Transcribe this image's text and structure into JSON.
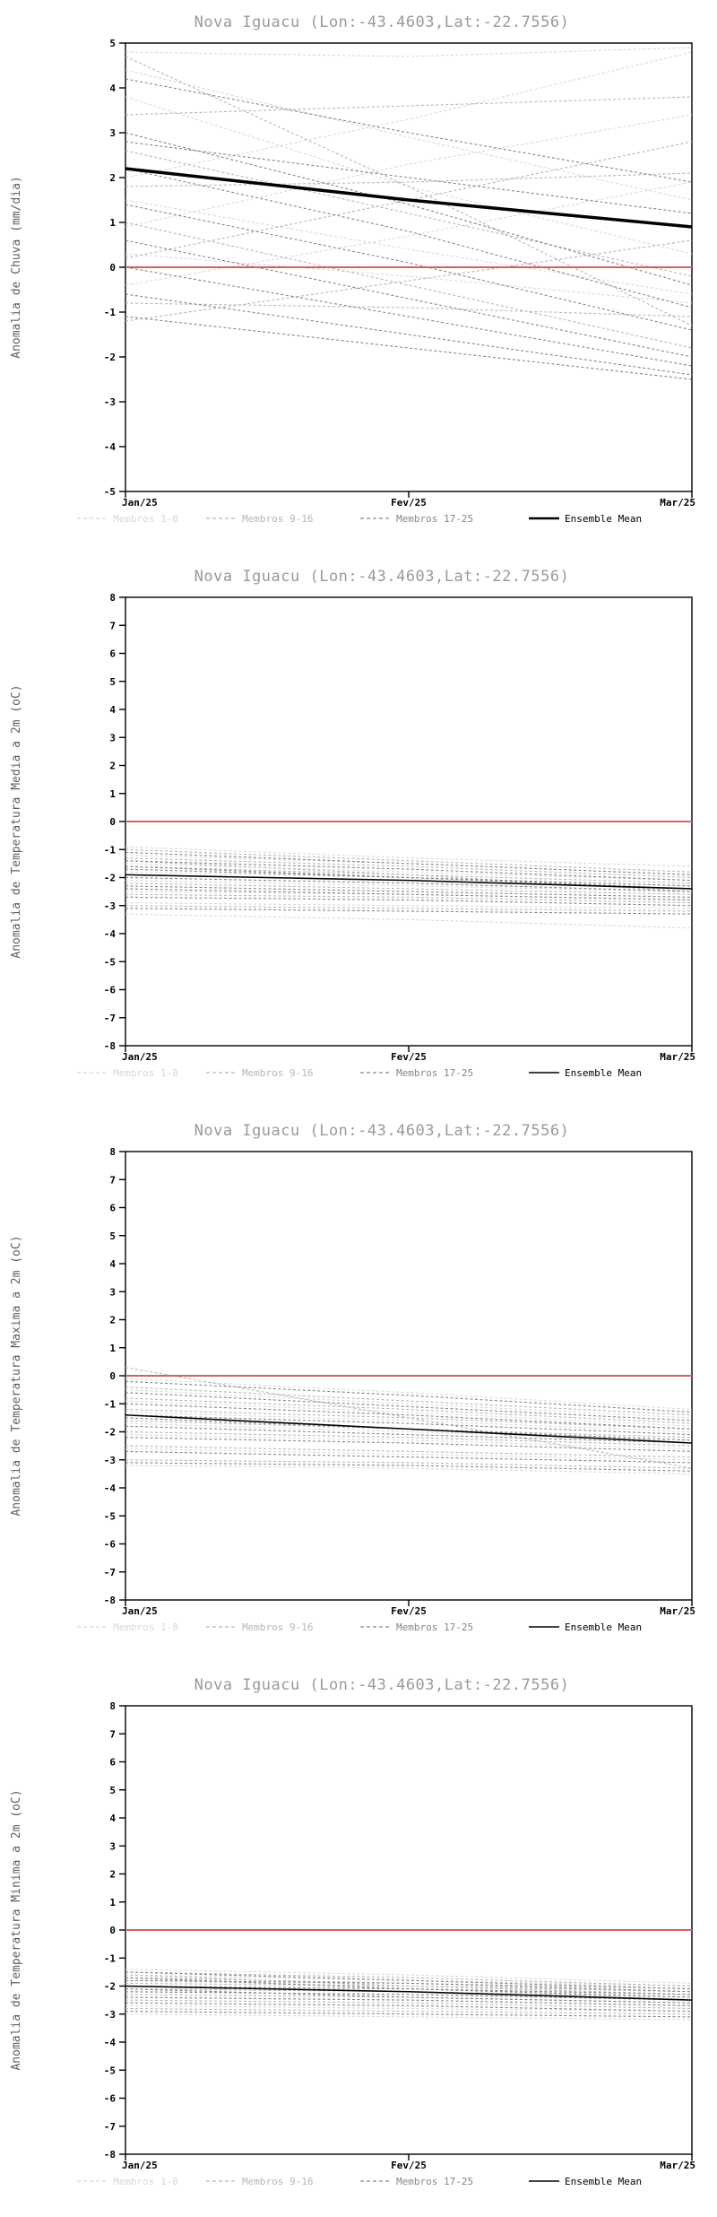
{
  "page": {
    "background": "#ffffff"
  },
  "chart_data": [
    {
      "type": "line",
      "title": "Nova Iguacu (Lon:-43.4603,Lat:-22.7556)",
      "ylabel": "Anomalia de Chuva (mm/dia)",
      "xlabel": "",
      "ylim": [
        -5,
        5
      ],
      "ytick_step": 1,
      "x": [
        "Jan/25",
        "Fev/25",
        "Mar/25"
      ],
      "zero_line": {
        "value": 0,
        "color": "#d95f5f"
      },
      "groups": [
        {
          "name": "Membros 1-8",
          "color": "#d8d8d8",
          "members": [
            [
              4.8,
              4.7,
              4.9
            ],
            [
              4.4,
              2.9,
              1.5
            ],
            [
              3.8,
              1.8,
              0.3
            ],
            [
              2.0,
              3.3,
              4.8
            ],
            [
              1.5,
              0.4,
              -0.6
            ],
            [
              0.9,
              2.3,
              3.4
            ],
            [
              0.3,
              -0.2,
              -0.8
            ],
            [
              -0.4,
              0.7,
              1.9
            ]
          ]
        },
        {
          "name": "Membros 9-16",
          "color": "#b6b6b6",
          "members": [
            [
              4.7,
              1.8,
              -1.3
            ],
            [
              3.4,
              3.6,
              3.8
            ],
            [
              2.6,
              1.2,
              -0.2
            ],
            [
              1.8,
              1.9,
              2.1
            ],
            [
              1.0,
              -0.4,
              -1.8
            ],
            [
              0.2,
              1.5,
              2.8
            ],
            [
              -0.8,
              -0.9,
              -1.1
            ],
            [
              -1.2,
              -0.3,
              0.6
            ]
          ]
        },
        {
          "name": "Membros 17-25",
          "color": "#868686",
          "members": [
            [
              4.2,
              3.0,
              1.9
            ],
            [
              3.0,
              1.4,
              -0.4
            ],
            [
              2.2,
              0.8,
              -0.9
            ],
            [
              1.4,
              0.1,
              -1.4
            ],
            [
              0.6,
              -0.7,
              -2.0
            ],
            [
              0.0,
              -1.1,
              -2.2
            ],
            [
              -0.6,
              -1.5,
              -2.4
            ],
            [
              -1.1,
              -1.8,
              -2.5
            ],
            [
              2.8,
              2.0,
              1.2
            ]
          ]
        }
      ],
      "mean": {
        "name": "Ensemble Mean",
        "color": "#000000",
        "width": 3.5,
        "values": [
          2.2,
          1.5,
          0.9
        ]
      },
      "legend_position": "bottom"
    },
    {
      "type": "line",
      "title": "Nova Iguacu (Lon:-43.4603,Lat:-22.7556)",
      "ylabel": "Anomalia de Temperatura Media a 2m (oC)",
      "xlabel": "",
      "ylim": [
        -8,
        8
      ],
      "ytick_step": 1,
      "x": [
        "Jan/25",
        "Fev/25",
        "Mar/25"
      ],
      "zero_line": {
        "value": 0,
        "color": "#d95f5f"
      },
      "groups": [
        {
          "name": "Membros 1-8",
          "color": "#d8d8d8",
          "members": [
            [
              -0.9,
              -1.3,
              -1.6
            ],
            [
              -1.2,
              -1.5,
              -1.9
            ],
            [
              -1.5,
              -1.8,
              -2.1
            ],
            [
              -1.8,
              -2.0,
              -2.3
            ],
            [
              -2.1,
              -2.3,
              -2.5
            ],
            [
              -2.5,
              -2.6,
              -2.8
            ],
            [
              -2.9,
              -3.0,
              -3.1
            ],
            [
              -3.3,
              -3.5,
              -3.8
            ]
          ]
        },
        {
          "name": "Membros 9-16",
          "color": "#b6b6b6",
          "members": [
            [
              -1.0,
              -1.4,
              -1.8
            ],
            [
              -1.3,
              -1.6,
              -2.0
            ],
            [
              -1.6,
              -1.9,
              -2.2
            ],
            [
              -1.9,
              -2.1,
              -2.4
            ],
            [
              -2.2,
              -2.4,
              -2.6
            ],
            [
              -2.6,
              -2.7,
              -2.9
            ],
            [
              -3.0,
              -3.1,
              -3.2
            ],
            [
              -1.4,
              -1.9,
              -2.5
            ]
          ]
        },
        {
          "name": "Membros 17-25",
          "color": "#868686",
          "members": [
            [
              -1.1,
              -1.5,
              -1.9
            ],
            [
              -1.4,
              -1.7,
              -2.1
            ],
            [
              -1.7,
              -2.0,
              -2.3
            ],
            [
              -2.0,
              -2.2,
              -2.5
            ],
            [
              -2.3,
              -2.5,
              -2.7
            ],
            [
              -2.7,
              -2.8,
              -3.0
            ],
            [
              -3.1,
              -3.2,
              -3.3
            ],
            [
              -1.6,
              -2.0,
              -2.4
            ],
            [
              -2.4,
              -2.6,
              -2.8
            ]
          ]
        }
      ],
      "mean": {
        "name": "Ensemble Mean",
        "color": "#000000",
        "width": 1.6,
        "values": [
          -1.9,
          -2.1,
          -2.4
        ]
      },
      "legend_position": "bottom"
    },
    {
      "type": "line",
      "title": "Nova Iguacu (Lon:-43.4603,Lat:-22.7556)",
      "ylabel": "Anomalia de Temperatura Maxima a 2m (oC)",
      "xlabel": "",
      "ylim": [
        -8,
        8
      ],
      "ytick_step": 1,
      "x": [
        "Jan/25",
        "Fev/25",
        "Mar/25"
      ],
      "zero_line": {
        "value": 0,
        "color": "#d95f5f"
      },
      "groups": [
        {
          "name": "Membros 1-8",
          "color": "#d8d8d8",
          "members": [
            [
              -0.1,
              -0.6,
              -1.2
            ],
            [
              -0.5,
              -1.0,
              -1.5
            ],
            [
              -0.9,
              -1.3,
              -1.8
            ],
            [
              -1.3,
              -1.6,
              -2.0
            ],
            [
              -1.7,
              -2.0,
              -2.3
            ],
            [
              -2.1,
              -2.3,
              -2.6
            ],
            [
              -2.6,
              -2.8,
              -3.0
            ],
            [
              -3.2,
              -3.3,
              -3.5
            ]
          ]
        },
        {
          "name": "Membros 9-16",
          "color": "#b6b6b6",
          "members": [
            [
              0.3,
              -1.5,
              -3.3
            ],
            [
              -0.4,
              -0.9,
              -1.4
            ],
            [
              -0.8,
              -1.2,
              -1.7
            ],
            [
              -1.2,
              -1.5,
              -1.9
            ],
            [
              -1.6,
              -1.9,
              -2.2
            ],
            [
              -2.0,
              -2.2,
              -2.5
            ],
            [
              -2.5,
              -2.7,
              -2.9
            ],
            [
              -3.0,
              -3.1,
              -3.3
            ]
          ]
        },
        {
          "name": "Membros 17-25",
          "color": "#868686",
          "members": [
            [
              -0.2,
              -0.7,
              -1.3
            ],
            [
              -0.6,
              -1.1,
              -1.6
            ],
            [
              -1.0,
              -1.4,
              -1.9
            ],
            [
              -1.4,
              -1.7,
              -2.1
            ],
            [
              -1.8,
              -2.1,
              -2.4
            ],
            [
              -2.2,
              -2.4,
              -2.7
            ],
            [
              -2.7,
              -2.9,
              -3.1
            ],
            [
              -3.1,
              -3.2,
              -3.4
            ],
            [
              -1.5,
              -1.9,
              -2.3
            ]
          ]
        }
      ],
      "mean": {
        "name": "Ensemble Mean",
        "color": "#000000",
        "width": 1.6,
        "values": [
          -1.4,
          -1.9,
          -2.4
        ]
      },
      "legend_position": "bottom"
    },
    {
      "type": "line",
      "title": "Nova Iguacu (Lon:-43.4603,Lat:-22.7556)",
      "ylabel": "Anomalia de Temperatura Minima a 2m (oC)",
      "xlabel": "",
      "ylim": [
        -8,
        8
      ],
      "ytick_step": 1,
      "x": [
        "Jan/25",
        "Fev/25",
        "Mar/25"
      ],
      "zero_line": {
        "value": 0,
        "color": "#d95f5f"
      },
      "groups": [
        {
          "name": "Membros 1-8",
          "color": "#d8d8d8",
          "members": [
            [
              -1.4,
              -1.6,
              -1.9
            ],
            [
              -1.6,
              -1.8,
              -2.0
            ],
            [
              -1.8,
              -2.0,
              -2.2
            ],
            [
              -2.0,
              -2.1,
              -2.3
            ],
            [
              -2.2,
              -2.3,
              -2.5
            ],
            [
              -2.4,
              -2.5,
              -2.7
            ],
            [
              -2.7,
              -2.8,
              -2.9
            ],
            [
              -3.0,
              -3.1,
              -3.2
            ]
          ]
        },
        {
          "name": "Membros 9-16",
          "color": "#b6b6b6",
          "members": [
            [
              -1.5,
              -1.7,
              -2.0
            ],
            [
              -1.7,
              -1.9,
              -2.1
            ],
            [
              -1.9,
              -2.0,
              -2.2
            ],
            [
              -2.1,
              -2.2,
              -2.4
            ],
            [
              -2.3,
              -2.4,
              -2.6
            ],
            [
              -2.5,
              -2.6,
              -2.8
            ],
            [
              -2.8,
              -2.9,
              -3.0
            ],
            [
              -1.6,
              -2.0,
              -2.3
            ]
          ]
        },
        {
          "name": "Membros 17-25",
          "color": "#868686",
          "members": [
            [
              -1.5,
              -1.8,
              -2.1
            ],
            [
              -1.8,
              -1.9,
              -2.2
            ],
            [
              -2.0,
              -2.1,
              -2.3
            ],
            [
              -2.2,
              -2.3,
              -2.5
            ],
            [
              -2.4,
              -2.5,
              -2.7
            ],
            [
              -2.6,
              -2.7,
              -2.9
            ],
            [
              -2.9,
              -3.0,
              -3.1
            ],
            [
              -1.7,
              -2.1,
              -2.4
            ],
            [
              -2.1,
              -2.4,
              -2.6
            ]
          ]
        }
      ],
      "mean": {
        "name": "Ensemble Mean",
        "color": "#000000",
        "width": 1.6,
        "values": [
          -2.0,
          -2.2,
          -2.5
        ]
      },
      "legend_position": "bottom"
    }
  ]
}
